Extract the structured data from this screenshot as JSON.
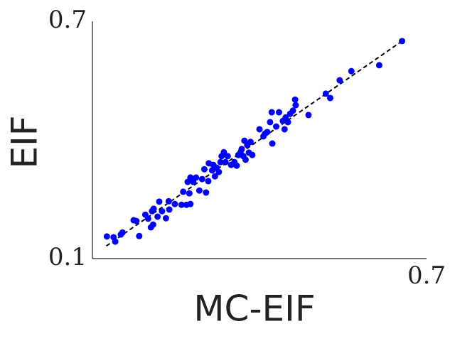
{
  "chart_data": {
    "type": "scatter",
    "x_label": "MC-EIF",
    "y_label": "EIF",
    "xlim": [
      0.1,
      0.7
    ],
    "ylim": [
      0.1,
      0.7
    ],
    "xticks": [
      0.7
    ],
    "yticks": [
      0.1,
      0.7
    ],
    "reference_line": {
      "x": [
        0.125,
        0.656
      ],
      "y": [
        0.132,
        0.65
      ]
    },
    "series": [
      {
        "color": "#0000ff",
        "x": [
          0.126,
          0.138,
          0.141,
          0.151,
          0.154,
          0.174,
          0.179,
          0.184,
          0.195,
          0.2,
          0.205,
          0.207,
          0.21,
          0.209,
          0.217,
          0.22,
          0.225,
          0.232,
          0.238,
          0.237,
          0.248,
          0.26,
          0.263,
          0.269,
          0.274,
          0.276,
          0.271,
          0.276,
          0.281,
          0.286,
          0.292,
          0.297,
          0.301,
          0.304,
          0.308,
          0.309,
          0.315,
          0.317,
          0.32,
          0.323,
          0.327,
          0.33,
          0.332,
          0.336,
          0.339,
          0.343,
          0.349,
          0.355,
          0.359,
          0.362,
          0.366,
          0.368,
          0.371,
          0.373,
          0.375,
          0.378,
          0.381,
          0.384,
          0.387,
          0.4,
          0.407,
          0.41,
          0.414,
          0.419,
          0.423,
          0.422,
          0.43,
          0.435,
          0.442,
          0.445,
          0.447,
          0.451,
          0.455,
          0.46,
          0.464,
          0.465,
          0.488,
          0.519,
          0.527,
          0.544,
          0.565,
          0.615,
          0.656
        ],
        "values": [
          0.156,
          0.154,
          0.143,
          0.161,
          0.166,
          0.197,
          0.195,
          0.157,
          0.211,
          0.201,
          0.179,
          0.22,
          0.226,
          0.186,
          0.206,
          0.244,
          0.22,
          0.202,
          0.224,
          0.245,
          0.238,
          0.236,
          0.269,
          0.236,
          0.265,
          0.238,
          0.294,
          0.305,
          0.294,
          0.305,
          0.272,
          0.301,
          0.326,
          0.267,
          0.296,
          0.341,
          0.323,
          0.337,
          0.308,
          0.33,
          0.319,
          0.344,
          0.359,
          0.369,
          0.344,
          0.359,
          0.337,
          0.344,
          0.335,
          0.362,
          0.369,
          0.377,
          0.359,
          0.398,
          0.35,
          0.387,
          0.368,
          0.395,
          0.362,
          0.427,
          0.409,
          0.416,
          0.42,
          0.445,
          0.391,
          0.47,
          0.434,
          0.47,
          0.448,
          0.427,
          0.457,
          0.445,
          0.466,
          0.474,
          0.502,
          0.488,
          0.463,
          0.517,
          0.506,
          0.551,
          0.574,
          0.589,
          0.65
        ]
      }
    ]
  }
}
